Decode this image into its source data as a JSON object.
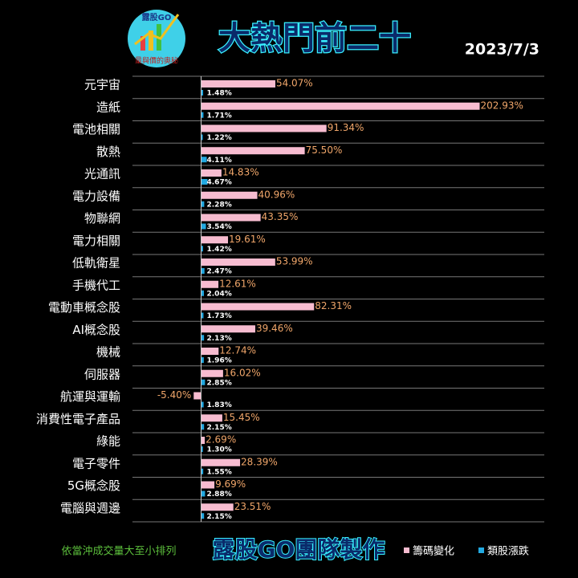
{
  "logo_text": "露股GO",
  "logo_subtext": "量與價的奧秘",
  "date": "2023/7/3",
  "footer_note": "依當沖成交量大至小排列",
  "credit": "露股GO團隊製作",
  "chart_data": {
    "type": "bar",
    "orientation": "horizontal",
    "title": "大熱門前二十",
    "categories": [
      "元宇宙",
      "造紙",
      "電池相關",
      "散熱",
      "光通訊",
      "電力設備",
      "物聯網",
      "電力相關",
      "低軌衛星",
      "手機代工",
      "電動車概念股",
      "AI概念股",
      "機械",
      "伺服器",
      "航運與運輸",
      "消費性電子產品",
      "綠能",
      "電子零件",
      "5G概念股",
      "電腦與週邊"
    ],
    "series": [
      {
        "name": "籌碼變化",
        "color": "#f7bcd0",
        "values": [
          54.07,
          202.93,
          91.34,
          75.5,
          14.83,
          40.96,
          43.35,
          19.61,
          53.99,
          12.61,
          82.31,
          39.46,
          12.74,
          16.02,
          -5.4,
          15.45,
          2.69,
          28.39,
          9.69,
          23.51
        ],
        "value_labels": [
          "54.07%",
          "202.93%",
          "91.34%",
          "75.50%",
          "14.83%",
          "40.96%",
          "43.35%",
          "19.61%",
          "53.99%",
          "12.61%",
          "82.31%",
          "39.46%",
          "12.74%",
          "16.02%",
          "-5.40%",
          "15.45%",
          "2.69%",
          "28.39%",
          "9.69%",
          "23.51%"
        ]
      },
      {
        "name": "類股漲跌",
        "color": "#22a9e1",
        "values": [
          1.48,
          1.71,
          1.22,
          4.11,
          4.67,
          2.28,
          3.54,
          1.42,
          2.47,
          2.04,
          1.73,
          2.13,
          1.96,
          2.85,
          1.83,
          2.15,
          1.3,
          1.55,
          2.88,
          2.15
        ],
        "value_labels": [
          "1.48%",
          "1.71%",
          "1.22%",
          "4.11%",
          "4.67%",
          "2.28%",
          "3.54%",
          "1.42%",
          "2.47%",
          "2.04%",
          "1.73%",
          "2.13%",
          "1.96%",
          "2.85%",
          "1.83%",
          "2.15%",
          "1.30%",
          "1.55%",
          "2.88%",
          "2.15%"
        ]
      }
    ],
    "xlim": [
      -50,
      250
    ]
  }
}
